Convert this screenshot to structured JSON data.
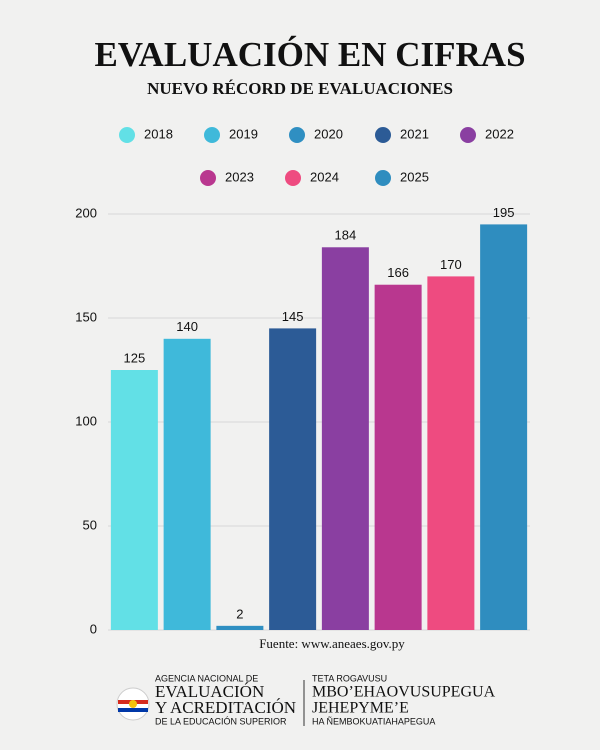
{
  "chart_data": {
    "type": "bar",
    "title": "EVALUACIÓN EN CIFRAS",
    "subtitle": "NUEVO RÉCORD DE EVALUACIONES",
    "categories": [
      "2018",
      "2019",
      "2020",
      "2021",
      "2022",
      "2023",
      "2024",
      "2025"
    ],
    "values": [
      125,
      140,
      2,
      145,
      184,
      166,
      170,
      195
    ],
    "colors": [
      "#62e0e6",
      "#3fb9da",
      "#2f8fc2",
      "#2c5b96",
      "#8a3fa1",
      "#b9378f",
      "#ee4b80",
      "#2f8dbf"
    ],
    "ylim": [
      0,
      200
    ],
    "yticks": [
      0,
      50,
      100,
      150,
      200
    ],
    "grid": true,
    "source": "Fuente: www.aneaes.gov.py"
  },
  "footer": {
    "left": [
      "AGENCIA NACIONAL DE",
      "EVALUACIÓN",
      "Y ACREDITACIÓN",
      "DE LA EDUCACIÓN SUPERIOR"
    ],
    "right": [
      "TETA ROGAVUSU",
      "MBO’EHAOVUSUPEGUA",
      "JEHEPYME’E",
      "HA ÑEMBOKUATIAHAPEGUA"
    ]
  }
}
